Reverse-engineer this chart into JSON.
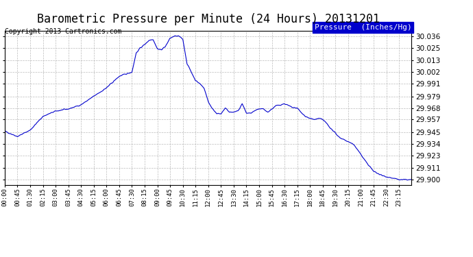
{
  "title": "Barometric Pressure per Minute (24 Hours) 20131201",
  "copyright": "Copyright 2013 Cartronics.com",
  "legend_label": "Pressure  (Inches/Hg)",
  "legend_bg": "#0000cc",
  "legend_text_color": "#ffffff",
  "line_color": "#0000cc",
  "bg_color": "#ffffff",
  "grid_color": "#aaaaaa",
  "yticks": [
    29.9,
    29.911,
    29.923,
    29.934,
    29.945,
    29.957,
    29.968,
    29.979,
    29.991,
    30.002,
    30.013,
    30.025,
    30.036
  ],
  "ylim": [
    29.895,
    30.041
  ],
  "xtick_labels": [
    "00:00",
    "00:45",
    "01:30",
    "02:15",
    "03:00",
    "03:45",
    "04:30",
    "05:15",
    "06:00",
    "06:45",
    "07:30",
    "08:15",
    "09:00",
    "09:45",
    "10:30",
    "11:15",
    "12:00",
    "12:45",
    "13:30",
    "14:15",
    "15:00",
    "15:45",
    "16:30",
    "17:15",
    "18:00",
    "18:45",
    "19:30",
    "20:15",
    "21:00",
    "21:45",
    "22:30",
    "23:15"
  ],
  "title_fontsize": 12,
  "copyright_fontsize": 7,
  "tick_fontsize": 6.5,
  "ytick_fontsize": 7.5,
  "legend_fontsize": 8,
  "keypoints": [
    [
      0,
      29.946
    ],
    [
      45,
      29.941
    ],
    [
      90,
      29.947
    ],
    [
      135,
      29.96
    ],
    [
      180,
      29.965
    ],
    [
      225,
      29.967
    ],
    [
      270,
      29.971
    ],
    [
      315,
      29.979
    ],
    [
      360,
      29.987
    ],
    [
      405,
      29.998
    ],
    [
      450,
      30.002
    ],
    [
      465,
      30.02
    ],
    [
      480,
      30.025
    ],
    [
      495,
      30.028
    ],
    [
      510,
      30.032
    ],
    [
      525,
      30.033
    ],
    [
      540,
      30.024
    ],
    [
      555,
      30.023
    ],
    [
      570,
      30.027
    ],
    [
      585,
      30.034
    ],
    [
      600,
      30.036
    ],
    [
      615,
      30.036
    ],
    [
      630,
      30.033
    ],
    [
      645,
      30.01
    ],
    [
      660,
      30.002
    ],
    [
      675,
      29.994
    ],
    [
      690,
      29.991
    ],
    [
      705,
      29.987
    ],
    [
      720,
      29.974
    ],
    [
      735,
      29.967
    ],
    [
      750,
      29.963
    ],
    [
      765,
      29.962
    ],
    [
      780,
      29.968
    ],
    [
      795,
      29.964
    ],
    [
      810,
      29.964
    ],
    [
      825,
      29.965
    ],
    [
      840,
      29.972
    ],
    [
      855,
      29.963
    ],
    [
      870,
      29.963
    ],
    [
      885,
      29.965
    ],
    [
      900,
      29.967
    ],
    [
      915,
      29.967
    ],
    [
      930,
      29.964
    ],
    [
      945,
      29.967
    ],
    [
      960,
      29.97
    ],
    [
      975,
      29.971
    ],
    [
      990,
      29.972
    ],
    [
      1005,
      29.97
    ],
    [
      1020,
      29.968
    ],
    [
      1035,
      29.968
    ],
    [
      1050,
      29.963
    ],
    [
      1065,
      29.96
    ],
    [
      1080,
      29.958
    ],
    [
      1095,
      29.957
    ],
    [
      1110,
      29.958
    ],
    [
      1125,
      29.957
    ],
    [
      1140,
      29.953
    ],
    [
      1155,
      29.948
    ],
    [
      1170,
      29.944
    ],
    [
      1185,
      29.94
    ],
    [
      1200,
      29.938
    ],
    [
      1215,
      29.936
    ],
    [
      1230,
      29.934
    ],
    [
      1245,
      29.93
    ],
    [
      1260,
      29.924
    ],
    [
      1275,
      29.918
    ],
    [
      1290,
      29.913
    ],
    [
      1305,
      29.908
    ],
    [
      1320,
      29.906
    ],
    [
      1335,
      29.904
    ],
    [
      1350,
      29.903
    ],
    [
      1365,
      29.902
    ],
    [
      1380,
      29.901
    ],
    [
      1395,
      29.9
    ],
    [
      1410,
      29.9
    ],
    [
      1425,
      29.9
    ],
    [
      1439,
      29.9
    ]
  ]
}
